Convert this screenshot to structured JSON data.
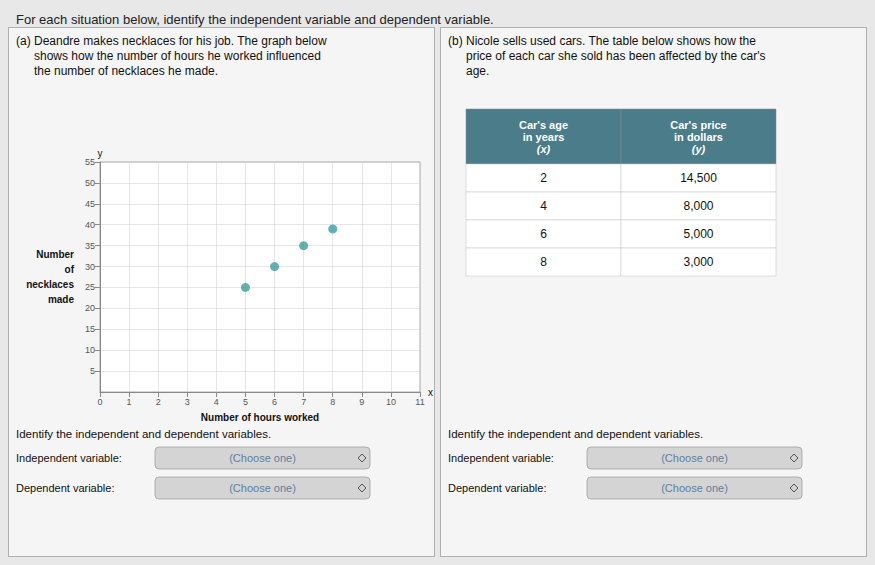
{
  "chart_data": {
    "type": "scatter",
    "title": "For each situation below, identify the independent variable and dependent variable.",
    "x": [
      5,
      6,
      7,
      8
    ],
    "values": [
      25,
      30,
      35,
      39
    ],
    "color": "#3a9ea5",
    "xlabel": "Number of hours worked",
    "ylabel": "Number\nof\nnecklaces\nmade",
    "xlim": [
      0,
      11
    ],
    "ylim": [
      0,
      55
    ],
    "xticks": [
      0,
      1,
      2,
      3,
      4,
      5,
      6,
      7,
      8,
      9,
      10,
      11
    ],
    "yticks": [
      5,
      10,
      15,
      20,
      25,
      30,
      35,
      40,
      45,
      50,
      55
    ],
    "grid": true,
    "annotations": [
      "(a)",
      "Deandre makes necklaces for his job. The graph below",
      "shows how the number of hours he worked influenced",
      "the number of necklaces he made.",
      "y",
      "x",
      "Identify the independent and dependent variables.",
      "Independent variable:",
      "(Choose one)",
      "Dependent variable:",
      "(Choose one)",
      "(b)",
      "Nicole sells used cars. The table below shows how the",
      "price of each car she sold has been affected by the car's",
      "age.",
      "Identify the independent and dependent variables.",
      "Independent variable:",
      "(Choose one)",
      "Dependent variable:",
      "(Choose one)"
    ],
    "table": {
      "header": [
        [
          "Car's age",
          "in years",
          "(x)"
        ],
        [
          "Car's price",
          "in dollars",
          "(y)"
        ]
      ],
      "rows": [
        [
          2,
          "14,500"
        ],
        [
          4,
          "8,000"
        ],
        [
          6,
          "5,000"
        ],
        [
          8,
          "3,000"
        ]
      ]
    }
  }
}
